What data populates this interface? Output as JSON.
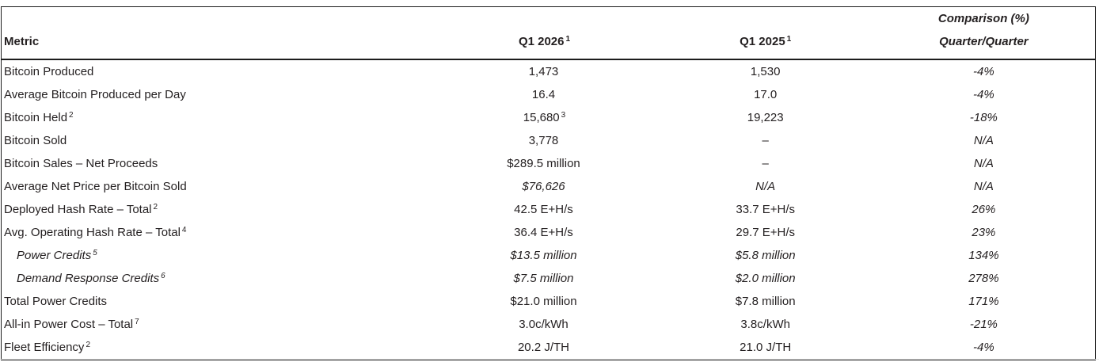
{
  "colors": {
    "text": "#231f20",
    "border": "#1c1c1c",
    "background": "#ffffff"
  },
  "table": {
    "header": {
      "metric": "Metric",
      "q1_2026": "Q1 2026",
      "q1_2026_sup": "1",
      "q1_2025": "Q1 2025",
      "q1_2025_sup": "1",
      "comparison_line1": "Comparison (%)",
      "comparison_line2": "Quarter/Quarter"
    },
    "rows": [
      {
        "metric": "Bitcoin Produced",
        "metric_sup": "",
        "q1_2026": "1,473",
        "q1_2026_sup": "",
        "q1_2025": "1,530",
        "comparison": "-4%",
        "style": "normal"
      },
      {
        "metric": "Average Bitcoin Produced per Day",
        "metric_sup": "",
        "q1_2026": "16.4",
        "q1_2026_sup": "",
        "q1_2025": "17.0",
        "comparison": "-4%",
        "style": "normal"
      },
      {
        "metric": "Bitcoin Held",
        "metric_sup": "2",
        "q1_2026": "15,680",
        "q1_2026_sup": "3",
        "q1_2025": "19,223",
        "comparison": "-18%",
        "style": "normal"
      },
      {
        "metric": "Bitcoin Sold",
        "metric_sup": "",
        "q1_2026": "3,778",
        "q1_2026_sup": "",
        "q1_2025": "–",
        "comparison": "N/A",
        "style": "normal"
      },
      {
        "metric": "Bitcoin Sales – Net Proceeds",
        "metric_sup": "",
        "q1_2026": "$289.5 million",
        "q1_2026_sup": "",
        "q1_2025": "–",
        "comparison": "N/A",
        "style": "normal"
      },
      {
        "metric": "Average Net Price per Bitcoin Sold",
        "metric_sup": "",
        "q1_2026": "$76,626",
        "q1_2026_sup": "",
        "q1_2025": "N/A",
        "comparison": "N/A",
        "style": "values-italic"
      },
      {
        "metric": "Deployed Hash Rate – Total",
        "metric_sup": "2",
        "q1_2026": "42.5 E+H/s",
        "q1_2026_sup": "",
        "q1_2025": "33.7 E+H/s",
        "comparison": "26%",
        "style": "normal"
      },
      {
        "metric": "Avg. Operating Hash Rate – Total",
        "metric_sup": "4",
        "q1_2026": "36.4 E+H/s",
        "q1_2026_sup": "",
        "q1_2025": "29.7 E+H/s",
        "comparison": "23%",
        "style": "normal"
      },
      {
        "metric": "Power Credits",
        "metric_sup": "5",
        "q1_2026": "$13.5 million",
        "q1_2026_sup": "",
        "q1_2025": "$5.8 million",
        "comparison": "134%",
        "style": "indent-italic"
      },
      {
        "metric": "Demand Response Credits",
        "metric_sup": "6",
        "q1_2026": "$7.5 million",
        "q1_2026_sup": "",
        "q1_2025": "$2.0 million",
        "comparison": "278%",
        "style": "indent-italic"
      },
      {
        "metric": "Total Power Credits",
        "metric_sup": "",
        "q1_2026": "$21.0 million",
        "q1_2026_sup": "",
        "q1_2025": "$7.8 million",
        "comparison": "171%",
        "style": "normal"
      },
      {
        "metric": "All-in Power Cost – Total",
        "metric_sup": "7",
        "q1_2026": "3.0c/kWh",
        "q1_2026_sup": "",
        "q1_2025": "3.8c/kWh",
        "comparison": "-21%",
        "style": "normal"
      },
      {
        "metric": "Fleet Efficiency",
        "metric_sup": "2",
        "q1_2026": "20.2 J/TH",
        "q1_2026_sup": "",
        "q1_2025": "21.0 J/TH",
        "comparison": "-4%",
        "style": "normal"
      }
    ]
  }
}
